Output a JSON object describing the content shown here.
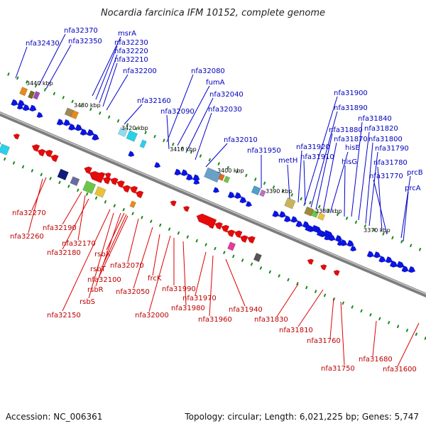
{
  "title": "Nocardia farcinica IFM 10152, complete genome",
  "footer": {
    "accession": "Accession: NC_006361",
    "summary": "Topology: circular; Length: 6,021,225 bp; Genes: 5,747"
  },
  "colors": {
    "forward": "#0a14e6",
    "reverse": "#e60a0a",
    "link_forward": "#0000cc",
    "link_reverse": "#dd0000",
    "backbone": "#888888",
    "ticks": "#1a8a1a"
  },
  "kbp_labels": [
    "3440 kbp",
    "3430 kbp",
    "3420 kbp",
    "3410 kbp",
    "3400 kbp",
    "3390 kbp",
    "3380 kbp",
    "3370 kbp"
  ],
  "top_labels": [
    "nfa32430",
    "nfa32370",
    "nfa32350",
    "msrA",
    "nfa32230",
    "nfa32220",
    "nfa32210",
    "nfa32200",
    "nfa32080",
    "fumA",
    "nfa32040",
    "nfa32030",
    "nfa32160",
    "nfa32090",
    "nfa32010",
    "nfa31950",
    "metH",
    "nfa31900",
    "nfa31890",
    "nfa31840",
    "nfa31880",
    "nfa31820",
    "nfa31870",
    "nfa31800",
    "nfa31920",
    "hisE",
    "nfa31790",
    "nfa31910",
    "hisG",
    "nfa31780",
    "prcB",
    "nfa31770",
    "prcA"
  ],
  "bottom_labels": [
    "nfa32270",
    "nfa32260",
    "nfa32190",
    "nfa32170",
    "nfa32180",
    "rsbX",
    "rsbT",
    "nfa32100",
    "nfa32070",
    "rsbR",
    "rsbS",
    "nfa32150",
    "nfa32050",
    "frcK",
    "nfa31990",
    "nfa31980",
    "nfa32000",
    "nfa31970",
    "nfa31960",
    "nfa31940",
    "nfa31830",
    "nfa31810",
    "nfa31760",
    "nfa31750",
    "nfa31680",
    "nfa31600"
  ]
}
